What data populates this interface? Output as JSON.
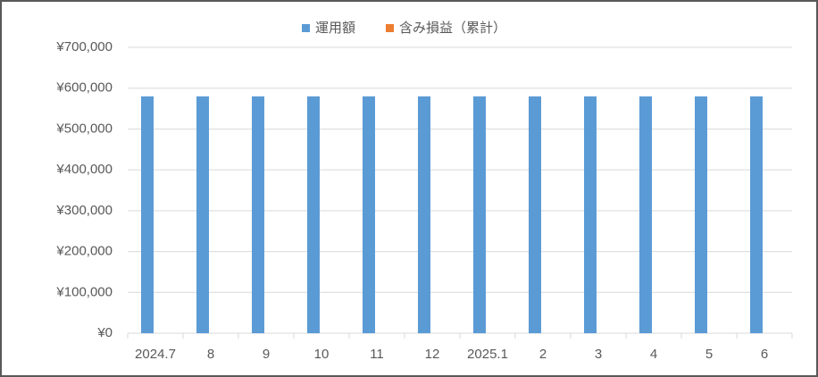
{
  "chart_data": {
    "type": "bar",
    "categories": [
      "2024.7",
      "8",
      "9",
      "10",
      "11",
      "12",
      "2025.1",
      "2",
      "3",
      "4",
      "5",
      "6"
    ],
    "series": [
      {
        "name": "運用額",
        "color": "#5b9bd5",
        "values": [
          580000,
          580000,
          580000,
          580000,
          580000,
          580000,
          580000,
          580000,
          580000,
          580000,
          580000,
          580000
        ]
      },
      {
        "name": "含み損益（累計）",
        "color": "#ed7d31",
        "values": [
          0,
          0,
          0,
          0,
          0,
          0,
          0,
          0,
          0,
          0,
          0,
          0
        ]
      }
    ],
    "ylim": [
      0,
      700000
    ],
    "yticks": [
      {
        "value": 0,
        "label": "¥0"
      },
      {
        "value": 100000,
        "label": "¥100,000"
      },
      {
        "value": 200000,
        "label": "¥200,000"
      },
      {
        "value": 300000,
        "label": "¥300,000"
      },
      {
        "value": 400000,
        "label": "¥400,000"
      },
      {
        "value": 500000,
        "label": "¥500,000"
      },
      {
        "value": 600000,
        "label": "¥600,000"
      },
      {
        "value": 700000,
        "label": "¥700,000"
      }
    ],
    "grid": true,
    "legend": "top"
  }
}
